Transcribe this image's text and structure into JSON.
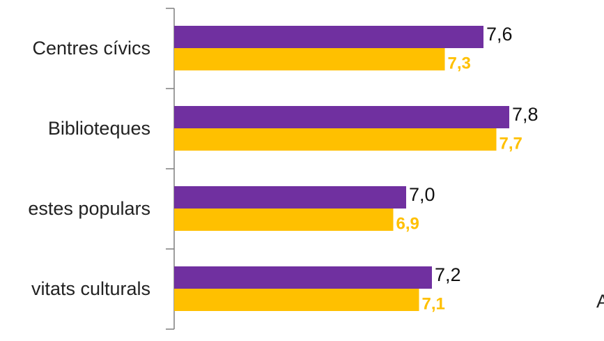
{
  "chart_data": {
    "type": "bar",
    "orientation": "horizontal",
    "categories": [
      "Centres cívics",
      "Biblioteques",
      "Festes populars",
      "Activitats culturals"
    ],
    "category_labels_visible": [
      "Centres cívics",
      "Biblioteques",
      "estes populars",
      "vitats culturals"
    ],
    "series": [
      {
        "values": [
          7.6,
          7.8,
          7.0,
          7.2
        ],
        "labels": [
          "7,6",
          "7,8",
          "7,0",
          "7,2"
        ],
        "color": "#7030A0"
      },
      {
        "values": [
          7.3,
          7.7,
          6.9,
          7.1
        ],
        "labels": [
          "7,3",
          "7,7",
          "6,9",
          "7,1"
        ],
        "color": "#FFC000"
      }
    ],
    "xlim": [
      5.2,
      7.9
    ],
    "grid": false,
    "legend": "none"
  },
  "stray_text": "A"
}
